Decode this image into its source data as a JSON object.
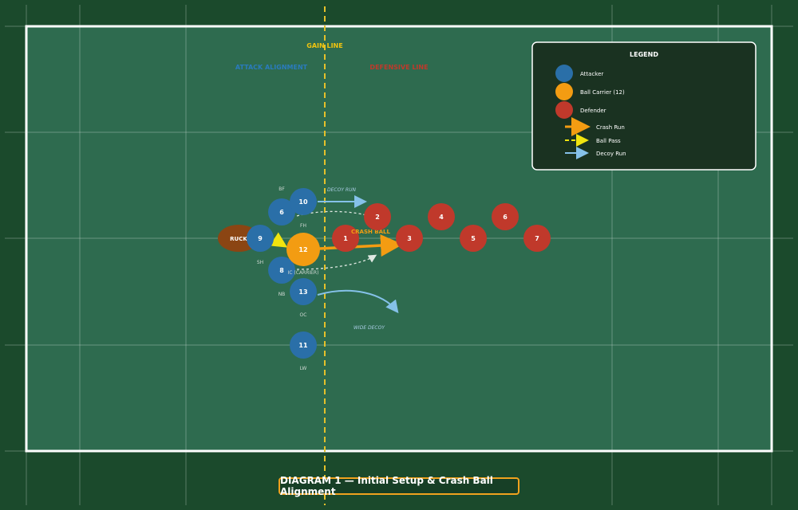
{
  "field": {
    "gain_line_label": "GAIN LINE",
    "attack_alignment_label": "ATTACK ALIGNMENT",
    "defensive_line_label": "DEFENSIVE LINE",
    "ruck_label": "RUCK",
    "crash_ball_label": "CRASH BALL",
    "decoy_run_label": "DECOY RUN",
    "wide_decoy_label": "WIDE DECOY"
  },
  "attackers": [
    {
      "number": "10",
      "role": "FH"
    },
    {
      "number": "6",
      "role": "BF"
    },
    {
      "number": "9",
      "role": "SH"
    },
    {
      "number": "12",
      "role": "IC (CARRIER)"
    },
    {
      "number": "8",
      "role": "NB"
    },
    {
      "number": "13",
      "role": "OC"
    },
    {
      "number": "11",
      "role": "LW"
    }
  ],
  "defenders": [
    {
      "number": "1"
    },
    {
      "number": "2"
    },
    {
      "number": "3"
    },
    {
      "number": "4"
    },
    {
      "number": "5"
    },
    {
      "number": "6"
    },
    {
      "number": "7"
    }
  ],
  "legend": {
    "title": "LEGEND",
    "attacker": "Attacker",
    "carrier": "Ball Carrier (12)",
    "defender": "Defender",
    "crash_run": "Crash Run",
    "ball_pass": "Ball Pass",
    "decoy_run": "Decoy Run"
  },
  "colors": {
    "attacker": "#2a6fa8",
    "carrier": "#f39c12",
    "defender": "#c0392b",
    "decoy": "#85c1e9",
    "pass": "#f1e40f",
    "ruck": "#8b4513",
    "field": "#2e6b4f"
  },
  "caption": "DIAGRAM 1 — Initial Setup & Crash Ball Alignment"
}
